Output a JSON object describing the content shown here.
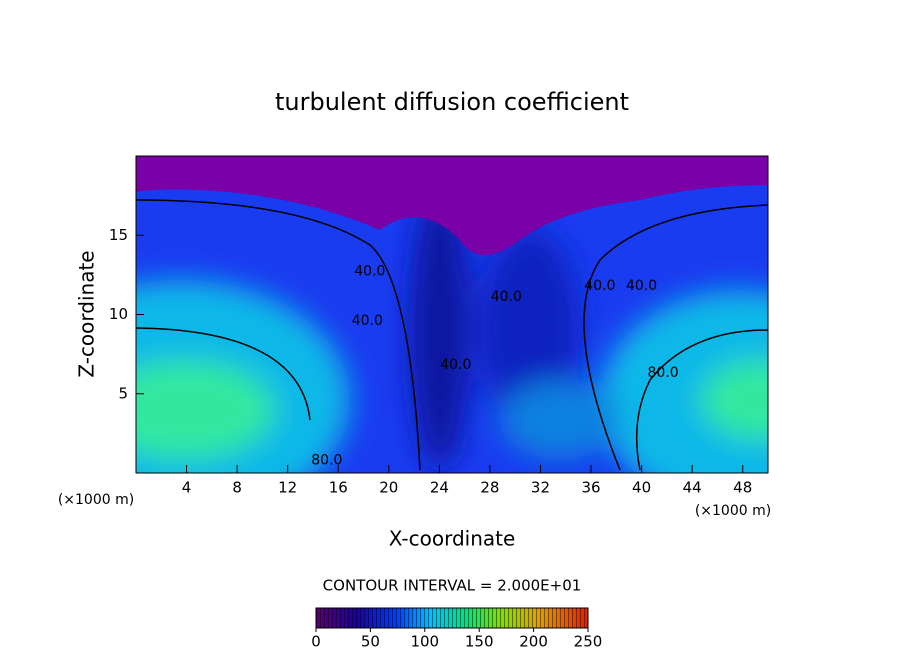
{
  "chart_data": {
    "type": "contour",
    "title": "turbulent diffusion coefficient",
    "x_label": "X-coordinate",
    "y_label": "Z-coordinate",
    "x_unit": "(×1000 m)",
    "x_unit_right": "(×1000 m)",
    "xlim": [
      0,
      50
    ],
    "ylim": [
      0,
      20
    ],
    "xticks": [
      4,
      8,
      12,
      16,
      20,
      24,
      28,
      32,
      36,
      40,
      44,
      48
    ],
    "yticks": [
      5,
      10,
      15
    ],
    "contour_labels": [
      {
        "text": "80.0",
        "x": 15.1,
        "y": 0.8
      },
      {
        "text": "40.0",
        "x": 18.5,
        "y": 12.7
      },
      {
        "text": "40.0",
        "x": 18.3,
        "y": 9.6
      },
      {
        "text": "40.0",
        "x": 25.3,
        "y": 6.8
      },
      {
        "text": "40.0",
        "x": 29.3,
        "y": 11.1
      },
      {
        "text": "40.0",
        "x": 36.7,
        "y": 11.8
      },
      {
        "text": "40.0",
        "x": 40.0,
        "y": 11.8
      },
      {
        "text": "80.0",
        "x": 41.7,
        "y": 6.3
      }
    ],
    "contour_interval_label": "CONTOUR INTERVAL = 2.000E+01",
    "colorbar": {
      "lim": [
        0,
        250
      ],
      "ticks": [
        0,
        50,
        100,
        150,
        200,
        250
      ]
    }
  }
}
